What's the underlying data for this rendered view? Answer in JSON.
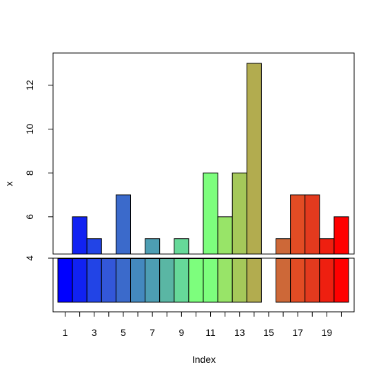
{
  "chart_data": {
    "type": "bar",
    "xlabel": "Index",
    "ylabel": "x",
    "x": [
      1,
      2,
      3,
      4,
      5,
      6,
      7,
      8,
      9,
      10,
      11,
      12,
      13,
      14,
      15,
      16,
      17,
      18,
      19,
      20
    ],
    "values": [
      4,
      6,
      5,
      4,
      7,
      4,
      5,
      4,
      5,
      4,
      8,
      6,
      8,
      13,
      0,
      5,
      7,
      7,
      5,
      6
    ],
    "colors": [
      "#0000ff",
      "#1122f2",
      "#2244e6",
      "#3357d9",
      "#3b6acb",
      "#4489bf",
      "#4d9eb3",
      "#5ab6a4",
      "#66d999",
      "#7dfe7d",
      "#7dfe7d",
      "#98e468",
      "#a5c85a",
      "#b2ac4f",
      "#ffffff",
      "#cd6838",
      "#e24c24",
      "#e33a1e",
      "#ee1f10",
      "#ff0000"
    ],
    "y_ticks": [
      "4",
      "6",
      "8",
      "10",
      "12"
    ],
    "x_ticks": [
      "1",
      "3",
      "5",
      "7",
      "9",
      "11",
      "13",
      "15",
      "17",
      "19"
    ],
    "upper_ylim": [
      4.3,
      13.0
    ],
    "lower_ylim": [
      0,
      4
    ],
    "axis_break": true,
    "grid": false,
    "legend": "none"
  }
}
